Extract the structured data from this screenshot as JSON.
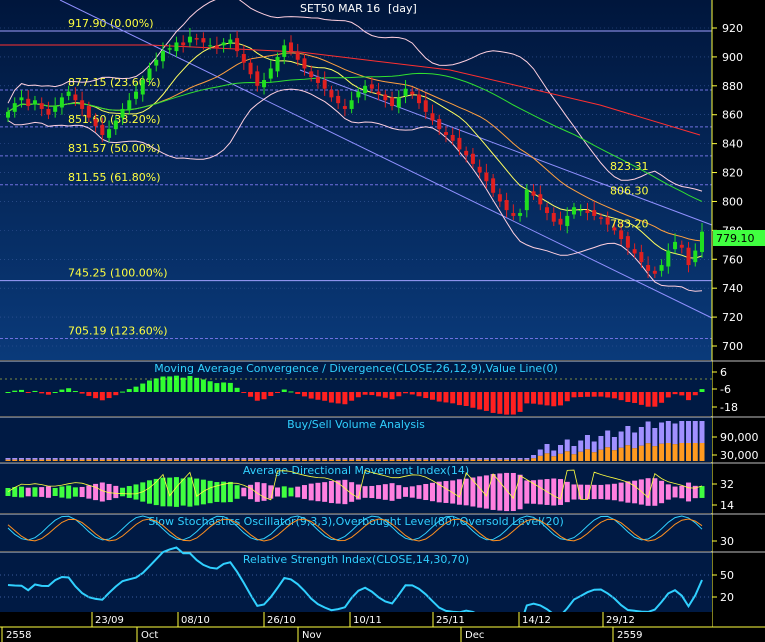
{
  "chart_data": {
    "type": "candlestick",
    "title": "SET50 MAR 16",
    "timeframe": "[day]",
    "last_price": 779.1,
    "ylim": [
      695,
      930
    ],
    "y_ticks": [
      700,
      720,
      740,
      760,
      780,
      800,
      820,
      840,
      860,
      880,
      900,
      920
    ],
    "fib_levels": [
      {
        "price": 917.9,
        "label": "917.90 (0.00%)"
      },
      {
        "price": 877.15,
        "label": "877.15 (23.60%)"
      },
      {
        "price": 851.6,
        "label": "851.60 (38.20%)"
      },
      {
        "price": 831.57,
        "label": "831.57 (50.00%)"
      },
      {
        "price": 811.55,
        "label": "811.55 (61.80%)"
      },
      {
        "price": 745.25,
        "label": "745.25 (100.00%)"
      },
      {
        "price": 705.19,
        "label": "705.19 (123.60%)"
      }
    ],
    "annotations": [
      {
        "price": 823.31,
        "label": "823.31"
      },
      {
        "price": 806.3,
        "label": "806.30"
      },
      {
        "price": 783.2,
        "label": "783.20"
      }
    ],
    "x_date_labels": [
      "23/09",
      "08/10",
      "26/10",
      "10/11",
      "25/11",
      "14/12",
      "29/12"
    ],
    "x_month_labels": [
      "2558",
      "Oct",
      "Nov",
      "Dec",
      "2559"
    ],
    "closes": [
      862,
      868,
      872,
      866,
      870,
      864,
      860,
      866,
      872,
      876,
      870,
      864,
      858,
      852,
      846,
      850,
      856,
      864,
      870,
      876,
      884,
      892,
      898,
      904,
      906,
      910,
      908,
      914,
      912,
      910,
      908,
      906,
      910,
      912,
      904,
      896,
      888,
      880,
      884,
      892,
      900,
      908,
      904,
      898,
      892,
      886,
      882,
      878,
      872,
      868,
      864,
      870,
      876,
      880,
      878,
      874,
      870,
      866,
      872,
      878,
      874,
      868,
      862,
      856,
      850,
      846,
      842,
      836,
      832,
      826,
      820,
      814,
      806,
      800,
      794,
      790,
      792,
      808,
      804,
      798,
      792,
      786,
      784,
      790,
      796,
      794,
      792,
      790,
      788,
      784,
      780,
      774,
      768,
      764,
      758,
      752,
      750,
      756,
      766,
      772,
      768,
      756,
      766,
      779.1
    ],
    "panels": [
      {
        "title": "Moving Average Convergence / Divergence(CLOSE,26,12,9),Value Line(0)",
        "ticks": [
          "6",
          "-6",
          "-18"
        ]
      },
      {
        "title": "Buy/Sell Volume Analysis",
        "ticks": [
          "90,000",
          "30,000"
        ]
      },
      {
        "title": "Average Directional Movement Index(14)",
        "ticks": [
          "32",
          "14"
        ]
      },
      {
        "title": "Slow Stochastics Oscillator(9,3,3),Overbought Level(80),Oversold Level(20)",
        "ticks": [
          "30"
        ]
      },
      {
        "title": "Relative Strength Index(CLOSE,14,30,70)",
        "ticks": [
          "50",
          "20"
        ]
      }
    ],
    "colors": {
      "up": "#20e020",
      "down": "#e02020",
      "fib_line": "#8080ff",
      "label": "#ffff40",
      "price_box": "#40ff40"
    }
  }
}
